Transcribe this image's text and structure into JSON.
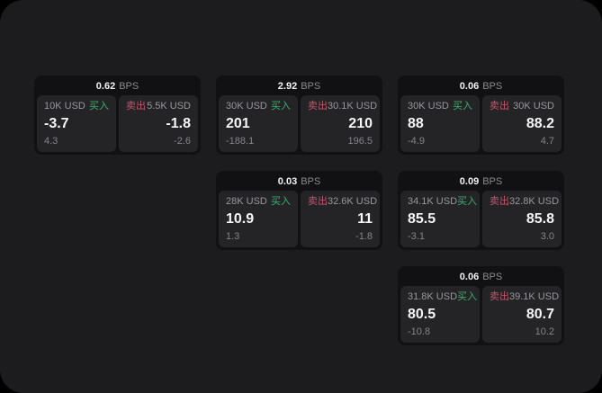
{
  "labels": {
    "buy": "买入",
    "sell": "卖出",
    "bps": "BPS"
  },
  "colors": {
    "outer_bg": "#000000",
    "page_bg": "#1c1c1e",
    "card_bg": "#111113",
    "panel_bg": "#242427",
    "buy": "#3fae6c",
    "sell": "#c4556b"
  },
  "cards": [
    {
      "bps": "0.62",
      "buy": {
        "amount": "10K USD",
        "value": "-3.7",
        "delta": "4.3"
      },
      "sell": {
        "amount": "5.5K USD",
        "value": "-1.8",
        "delta": "-2.6"
      }
    },
    {
      "bps": "2.92",
      "buy": {
        "amount": "30K USD",
        "value": "201",
        "delta": "-188.1"
      },
      "sell": {
        "amount": "30.1K USD",
        "value": "210",
        "delta": "196.5"
      }
    },
    {
      "bps": "0.06",
      "buy": {
        "amount": "30K USD",
        "value": "88",
        "delta": "-4.9"
      },
      "sell": {
        "amount": "30K USD",
        "value": "88.2",
        "delta": "4.7"
      }
    },
    {
      "bps": "0.03",
      "buy": {
        "amount": "28K USD",
        "value": "10.9",
        "delta": "1.3"
      },
      "sell": {
        "amount": "32.6K USD",
        "value": "11",
        "delta": "-1.8"
      }
    },
    {
      "bps": "0.09",
      "buy": {
        "amount": "34.1K USD",
        "value": "85.5",
        "delta": "-3.1"
      },
      "sell": {
        "amount": "32.8K USD",
        "value": "85.8",
        "delta": "3.0"
      }
    },
    {
      "bps": "0.06",
      "buy": {
        "amount": "31.8K USD",
        "value": "80.5",
        "delta": "-10.8"
      },
      "sell": {
        "amount": "39.1K USD",
        "value": "80.7",
        "delta": "10.2"
      }
    }
  ]
}
